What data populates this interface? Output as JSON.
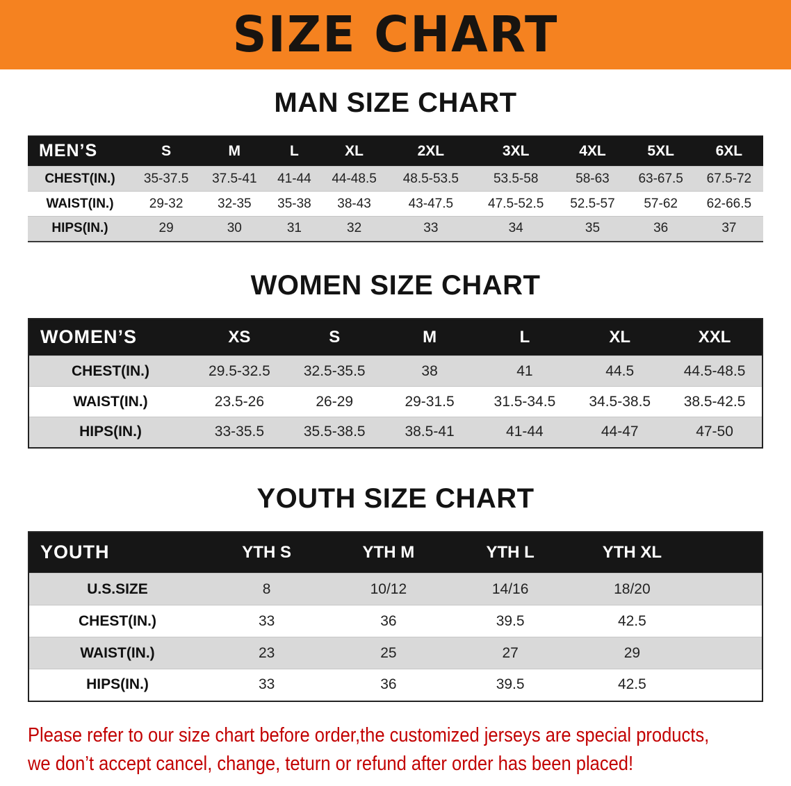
{
  "banner": {
    "title": "SIZE CHART"
  },
  "colors": {
    "banner-bg": "#f58220",
    "header-bg": "#161616",
    "row-alt": "#d9d9d9",
    "disclaimer-red": "#c20000"
  },
  "sections": [
    {
      "heading": "MAN SIZE CHART",
      "table": {
        "header_label": "MEN’S",
        "columns": [
          "S",
          "M",
          "L",
          "XL",
          "2XL",
          "3XL",
          "4XL",
          "5XL",
          "6XL"
        ],
        "rows": [
          {
            "label": "CHEST(IN.)",
            "values": [
              "35-37.5",
              "37.5-41",
              "41-44",
              "44-48.5",
              "48.5-53.5",
              "53.5-58",
              "58-63",
              "63-67.5",
              "67.5-72"
            ]
          },
          {
            "label": "WAIST(IN.)",
            "values": [
              "29-32",
              "32-35",
              "35-38",
              "38-43",
              "43-47.5",
              "47.5-52.5",
              "52.5-57",
              "57-62",
              "62-66.5"
            ]
          },
          {
            "label": "HIPS(IN.)",
            "values": [
              "29",
              "30",
              "31",
              "32",
              "33",
              "34",
              "35",
              "36",
              "37"
            ]
          }
        ]
      }
    },
    {
      "heading": "WOMEN SIZE CHART",
      "table": {
        "header_label": "WOMEN’S",
        "columns": [
          "XS",
          "S",
          "M",
          "L",
          "XL",
          "XXL"
        ],
        "rows": [
          {
            "label": "CHEST(IN.)",
            "values": [
              "29.5-32.5",
              "32.5-35.5",
              "38",
              "41",
              "44.5",
              "44.5-48.5"
            ]
          },
          {
            "label": "WAIST(IN.)",
            "values": [
              "23.5-26",
              "26-29",
              "29-31.5",
              "31.5-34.5",
              "34.5-38.5",
              "38.5-42.5"
            ]
          },
          {
            "label": "HIPS(IN.)",
            "values": [
              "33-35.5",
              "35.5-38.5",
              "38.5-41",
              "41-44",
              "44-47",
              "47-50"
            ]
          }
        ]
      }
    },
    {
      "heading": "YOUTH SIZE CHART",
      "table": {
        "header_label": "YOUTH",
        "columns": [
          "YTH S",
          "YTH M",
          "YTH L",
          "YTH XL"
        ],
        "rows": [
          {
            "label": "U.S.SIZE",
            "values": [
              "8",
              "10/12",
              "14/16",
              "18/20"
            ]
          },
          {
            "label": "CHEST(IN.)",
            "values": [
              "33",
              "36",
              "39.5",
              "42.5"
            ]
          },
          {
            "label": "WAIST(IN.)",
            "values": [
              "23",
              "25",
              "27",
              "29"
            ]
          },
          {
            "label": "HIPS(IN.)",
            "values": [
              "33",
              "36",
              "39.5",
              "42.5"
            ]
          }
        ]
      }
    }
  ],
  "disclaimer": {
    "line1": "Please refer to our size chart before order,the customized jerseys are special products,",
    "line2": "we don’t accept cancel, change, teturn or refund after order has been placed!"
  }
}
